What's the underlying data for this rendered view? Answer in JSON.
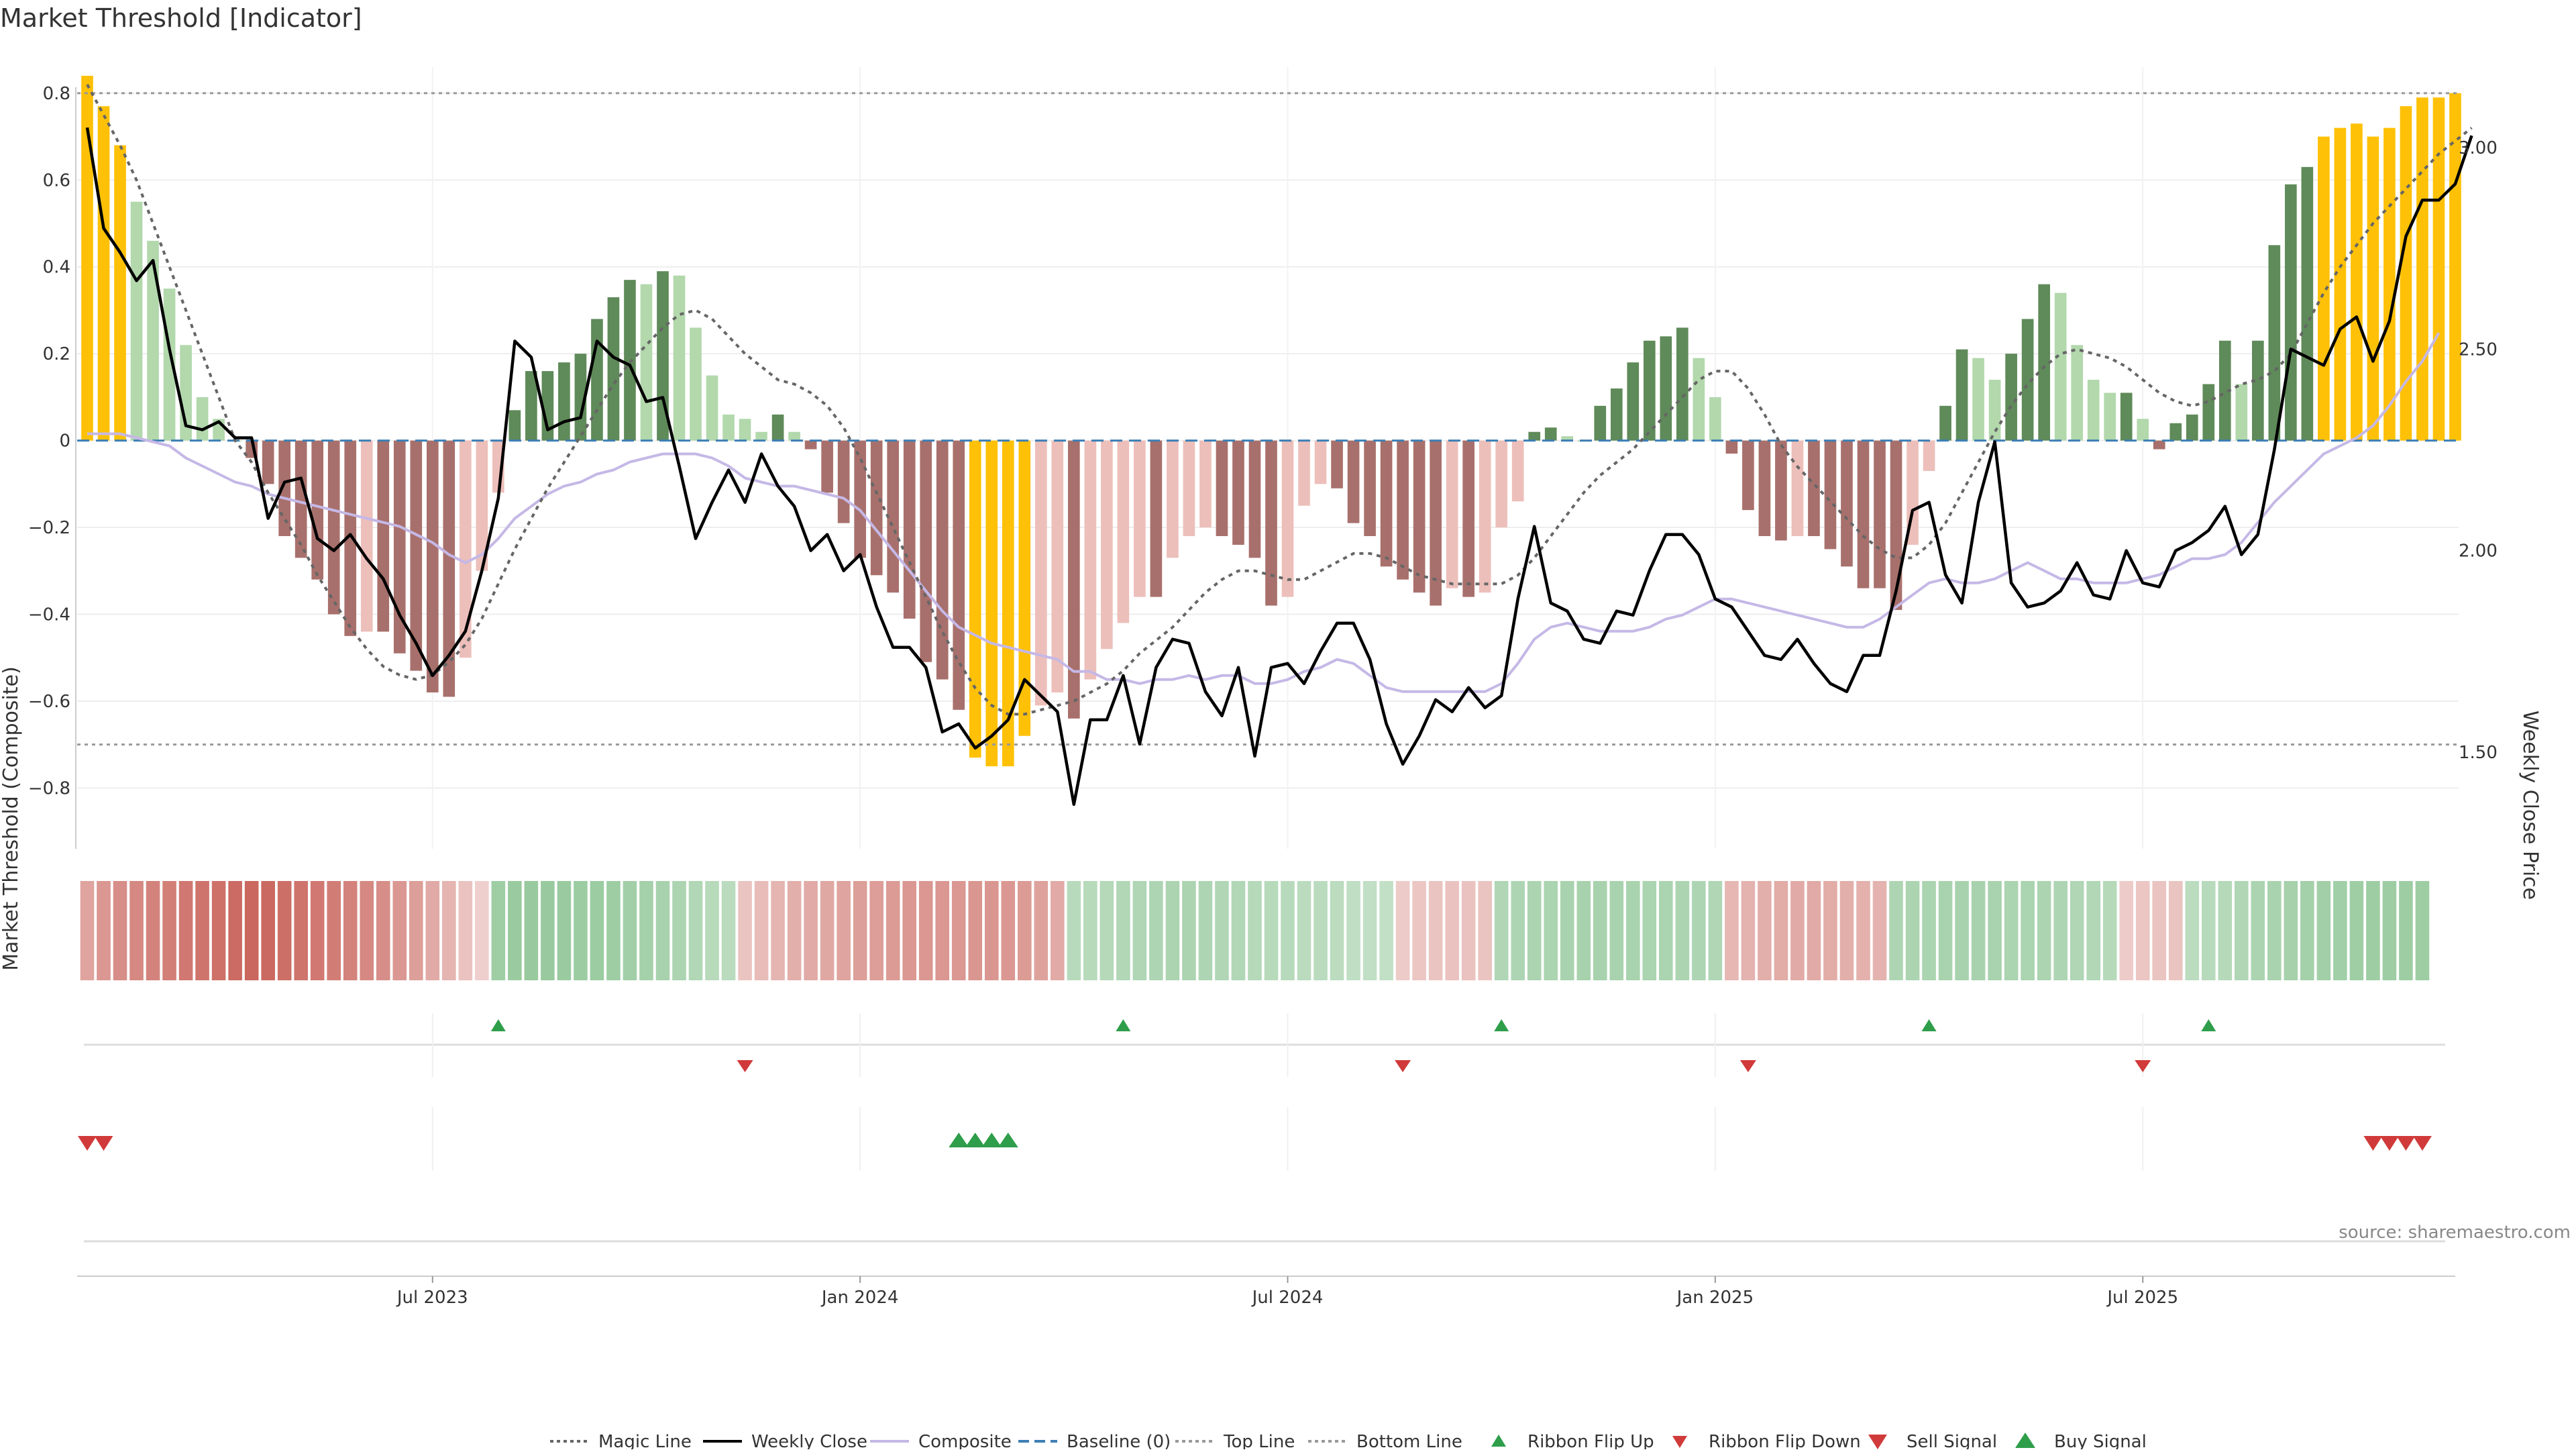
{
  "page": {
    "title": "Market Threshold [Indicator]",
    "source": "source: sharemaestro.com"
  },
  "colors": {
    "gold": "#FFC107",
    "green_strong": "#5F8A59",
    "green_light": "#B2D8AC",
    "red_strong": "#A8706C",
    "red_light": "#EDBFBA",
    "black": "#000000",
    "composite": "#C5B8E6",
    "grey": "#666666",
    "baseline": "#3D7FB5",
    "up": "#2E9E4A",
    "down": "#D13A3A"
  },
  "chart_data": {
    "type": "bar",
    "title": "Market Threshold [Indicator]",
    "ylabel": "Market Threshold (Composite)",
    "y2label": "Weekly Close Price",
    "ylim": [
      -0.94,
      0.86
    ],
    "y2lim": [
      1.26,
      3.2
    ],
    "yticks": [
      "0.8",
      "0.6",
      "0.4",
      "0.2",
      "0",
      "−0.2",
      "−0.4",
      "−0.6",
      "−0.8"
    ],
    "yticks_values": [
      0.8,
      0.6,
      0.4,
      0.2,
      0,
      -0.2,
      -0.4,
      -0.6,
      -0.8
    ],
    "y2ticks": [
      "3.00",
      "2.50",
      "2.00",
      "1.50"
    ],
    "y2ticks_values": [
      3.0,
      2.5,
      2.0,
      1.5
    ],
    "xticks": [
      {
        "label": "Jul 2023",
        "week": 21
      },
      {
        "label": "Jan 2024",
        "week": 47
      },
      {
        "label": "Jul 2024",
        "week": 73
      },
      {
        "label": "Jan 2025",
        "week": 99
      },
      {
        "label": "Jul 2025",
        "week": 125
      }
    ],
    "top_line": 0.8,
    "bottom_line": -0.7,
    "baseline": 0,
    "composite_bars": [
      0.84,
      0.77,
      0.68,
      0.55,
      0.46,
      0.35,
      0.22,
      0.1,
      0.05,
      0.0,
      -0.04,
      -0.1,
      -0.22,
      -0.27,
      -0.32,
      -0.4,
      -0.45,
      -0.44,
      -0.44,
      -0.49,
      -0.53,
      -0.58,
      -0.59,
      -0.5,
      -0.3,
      -0.12,
      0.07,
      0.16,
      0.16,
      0.18,
      0.2,
      0.28,
      0.33,
      0.37,
      0.36,
      0.39,
      0.38,
      0.26,
      0.15,
      0.06,
      0.05,
      0.02,
      0.06,
      0.02,
      -0.02,
      -0.12,
      -0.19,
      -0.27,
      -0.31,
      -0.35,
      -0.41,
      -0.51,
      -0.55,
      -0.62,
      -0.73,
      -0.75,
      -0.75,
      -0.68,
      -0.61,
      -0.58,
      -0.64,
      -0.55,
      -0.48,
      -0.42,
      -0.36,
      -0.36,
      -0.27,
      -0.22,
      -0.2,
      -0.22,
      -0.24,
      -0.27,
      -0.38,
      -0.36,
      -0.15,
      -0.1,
      -0.11,
      -0.19,
      -0.22,
      -0.29,
      -0.32,
      -0.35,
      -0.38,
      -0.34,
      -0.36,
      -0.35,
      -0.2,
      -0.14,
      0.02,
      0.03,
      0.01,
      0.0,
      0.08,
      0.12,
      0.18,
      0.23,
      0.24,
      0.26,
      0.19,
      0.1,
      -0.03,
      -0.16,
      -0.22,
      -0.23,
      -0.22,
      -0.22,
      -0.25,
      -0.29,
      -0.34,
      -0.34,
      -0.39,
      -0.24,
      -0.07,
      0.08,
      0.21,
      0.19,
      0.14,
      0.2,
      0.28,
      0.36,
      0.34,
      0.22,
      0.14,
      0.11,
      0.11,
      0.05,
      -0.02,
      0.04,
      0.06,
      0.13,
      0.23,
      0.13,
      0.23,
      0.45,
      0.59,
      0.63,
      0.7,
      0.72,
      0.73,
      0.7,
      0.72,
      0.77,
      0.79,
      0.79,
      0.8
    ],
    "series": [
      {
        "name": "Weekly Close",
        "axis": "right",
        "values": [
          3.05,
          2.8,
          2.74,
          2.67,
          2.72,
          2.5,
          2.31,
          2.3,
          2.32,
          2.28,
          2.28,
          2.08,
          2.17,
          2.18,
          2.03,
          2.0,
          2.04,
          1.98,
          1.93,
          1.84,
          1.77,
          1.69,
          1.74,
          1.8,
          1.95,
          2.13,
          2.52,
          2.48,
          2.3,
          2.32,
          2.33,
          2.52,
          2.48,
          2.46,
          2.37,
          2.38,
          2.21,
          2.03,
          2.12,
          2.2,
          2.12,
          2.24,
          2.16,
          2.11,
          2.0,
          2.04,
          1.95,
          1.99,
          1.86,
          1.76,
          1.76,
          1.71,
          1.55,
          1.57,
          1.51,
          1.54,
          1.58,
          1.68,
          1.64,
          1.6,
          1.37,
          1.58,
          1.58,
          1.69,
          1.52,
          1.71,
          1.78,
          1.77,
          1.65,
          1.59,
          1.71,
          1.49,
          1.71,
          1.72,
          1.67,
          1.75,
          1.82,
          1.82,
          1.73,
          1.57,
          1.47,
          1.54,
          1.63,
          1.6,
          1.66,
          1.61,
          1.64,
          1.88,
          2.06,
          1.87,
          1.85,
          1.78,
          1.77,
          1.85,
          1.84,
          1.95,
          2.04,
          2.04,
          1.99,
          1.88,
          1.86,
          1.8,
          1.74,
          1.73,
          1.78,
          1.72,
          1.67,
          1.65,
          1.74,
          1.74,
          1.9,
          2.1,
          2.12,
          1.94,
          1.87,
          2.12,
          2.27,
          1.92,
          1.86,
          1.87,
          1.9,
          1.97,
          1.89,
          1.88,
          2.0,
          1.92,
          1.91,
          2.0,
          2.02,
          2.05,
          2.11,
          1.99,
          2.04,
          2.25,
          2.5,
          2.48,
          2.46,
          2.55,
          2.58,
          2.47,
          2.57,
          2.78,
          2.87,
          2.87,
          2.91,
          3.03
        ]
      },
      {
        "name": "Composite",
        "axis": "right",
        "values": [
          2.29,
          2.29,
          2.29,
          2.28,
          2.27,
          2.26,
          2.23,
          2.21,
          2.19,
          2.17,
          2.16,
          2.14,
          2.13,
          2.12,
          2.11,
          2.1,
          2.09,
          2.08,
          2.07,
          2.06,
          2.04,
          2.02,
          1.99,
          1.97,
          1.99,
          2.03,
          2.08,
          2.11,
          2.14,
          2.16,
          2.17,
          2.19,
          2.2,
          2.22,
          2.23,
          2.24,
          2.24,
          2.24,
          2.23,
          2.21,
          2.18,
          2.17,
          2.16,
          2.16,
          2.15,
          2.14,
          2.13,
          2.1,
          2.05,
          2.0,
          1.95,
          1.9,
          1.85,
          1.81,
          1.79,
          1.77,
          1.76,
          1.75,
          1.74,
          1.73,
          1.7,
          1.7,
          1.68,
          1.68,
          1.67,
          1.68,
          1.68,
          1.69,
          1.68,
          1.69,
          1.69,
          1.67,
          1.67,
          1.68,
          1.7,
          1.71,
          1.73,
          1.72,
          1.69,
          1.66,
          1.65,
          1.65,
          1.65,
          1.65,
          1.65,
          1.65,
          1.67,
          1.72,
          1.78,
          1.81,
          1.82,
          1.81,
          1.8,
          1.8,
          1.8,
          1.81,
          1.83,
          1.84,
          1.86,
          1.88,
          1.88,
          1.87,
          1.86,
          1.85,
          1.84,
          1.83,
          1.82,
          1.81,
          1.81,
          1.83,
          1.86,
          1.89,
          1.92,
          1.93,
          1.92,
          1.92,
          1.93,
          1.95,
          1.97,
          1.95,
          1.93,
          1.93,
          1.92,
          1.92,
          1.92,
          1.93,
          1.94,
          1.96,
          1.98,
          1.98,
          1.99,
          2.02,
          2.07,
          2.12,
          2.16,
          2.2,
          2.24,
          2.26,
          2.28,
          2.31,
          2.36,
          2.42,
          2.47,
          2.54
        ]
      },
      {
        "name": "Magic Line",
        "axis": "left",
        "values": [
          0.82,
          0.75,
          0.68,
          0.6,
          0.5,
          0.4,
          0.3,
          0.2,
          0.1,
          0.0,
          -0.05,
          -0.12,
          -0.18,
          -0.24,
          -0.31,
          -0.37,
          -0.43,
          -0.48,
          -0.52,
          -0.54,
          -0.55,
          -0.54,
          -0.51,
          -0.47,
          -0.41,
          -0.33,
          -0.25,
          -0.18,
          -0.11,
          -0.05,
          0.01,
          0.07,
          0.13,
          0.18,
          0.22,
          0.26,
          0.29,
          0.3,
          0.28,
          0.24,
          0.2,
          0.17,
          0.14,
          0.13,
          0.11,
          0.08,
          0.03,
          -0.04,
          -0.12,
          -0.2,
          -0.28,
          -0.36,
          -0.44,
          -0.51,
          -0.57,
          -0.61,
          -0.63,
          -0.63,
          -0.62,
          -0.61,
          -0.6,
          -0.58,
          -0.56,
          -0.53,
          -0.49,
          -0.46,
          -0.43,
          -0.39,
          -0.35,
          -0.32,
          -0.3,
          -0.3,
          -0.31,
          -0.32,
          -0.32,
          -0.3,
          -0.28,
          -0.26,
          -0.26,
          -0.27,
          -0.29,
          -0.31,
          -0.32,
          -0.33,
          -0.33,
          -0.33,
          -0.33,
          -0.31,
          -0.27,
          -0.22,
          -0.17,
          -0.12,
          -0.08,
          -0.05,
          -0.02,
          0.02,
          0.06,
          0.1,
          0.14,
          0.16,
          0.16,
          0.12,
          0.06,
          -0.01,
          -0.06,
          -0.1,
          -0.14,
          -0.18,
          -0.22,
          -0.25,
          -0.27,
          -0.27,
          -0.24,
          -0.19,
          -0.12,
          -0.05,
          0.02,
          0.08,
          0.13,
          0.17,
          0.2,
          0.21,
          0.2,
          0.19,
          0.17,
          0.14,
          0.11,
          0.09,
          0.08,
          0.09,
          0.11,
          0.13,
          0.14,
          0.16,
          0.2,
          0.27,
          0.34,
          0.4,
          0.45,
          0.5,
          0.54,
          0.58,
          0.62,
          0.66,
          0.69,
          0.72
        ]
      }
    ],
    "ribbon_values": [
      -0.45,
      -0.55,
      -0.62,
      -0.66,
      -0.7,
      -0.73,
      -0.78,
      -0.82,
      -0.85,
      -0.88,
      -0.92,
      -0.9,
      -0.86,
      -0.82,
      -0.78,
      -0.74,
      -0.7,
      -0.66,
      -0.62,
      -0.55,
      -0.48,
      -0.4,
      -0.32,
      -0.22,
      -0.12,
      0.55,
      0.6,
      0.62,
      0.62,
      0.6,
      0.58,
      0.58,
      0.56,
      0.52,
      0.5,
      0.46,
      0.42,
      0.36,
      0.32,
      0.28,
      -0.2,
      -0.26,
      -0.32,
      -0.36,
      -0.4,
      -0.42,
      -0.45,
      -0.48,
      -0.5,
      -0.52,
      -0.54,
      -0.54,
      -0.55,
      -0.55,
      -0.56,
      -0.56,
      -0.55,
      -0.52,
      -0.46,
      -0.4,
      0.3,
      0.32,
      0.34,
      0.36,
      0.38,
      0.4,
      0.42,
      0.42,
      0.4,
      0.38,
      0.36,
      0.34,
      0.32,
      0.3,
      0.28,
      0.28,
      0.26,
      0.24,
      0.22,
      0.2,
      -0.15,
      -0.18,
      -0.2,
      -0.22,
      -0.22,
      -0.2,
      0.38,
      0.4,
      0.42,
      0.44,
      0.45,
      0.46,
      0.46,
      0.45,
      0.45,
      0.44,
      0.44,
      0.42,
      0.4,
      0.38,
      -0.3,
      -0.33,
      -0.36,
      -0.38,
      -0.4,
      -0.4,
      -0.38,
      -0.36,
      -0.34,
      -0.33,
      0.4,
      0.42,
      0.44,
      0.45,
      0.46,
      0.46,
      0.45,
      0.44,
      0.43,
      0.42,
      0.4,
      0.38,
      0.36,
      0.34,
      -0.15,
      -0.18,
      -0.2,
      -0.2,
      0.26,
      0.3,
      0.34,
      0.38,
      0.42,
      0.45,
      0.48,
      0.5,
      0.52,
      0.54,
      0.55,
      0.56,
      0.56,
      0.56,
      0.56
    ],
    "ribbon_flip_up_weeks": [
      25,
      63,
      86,
      112,
      129
    ],
    "ribbon_flip_down_weeks": [
      40,
      80,
      101,
      125
    ],
    "sell_signal_weeks": [
      0,
      1,
      139,
      140,
      141,
      142
    ],
    "buy_signal_weeks": [
      53,
      54,
      55,
      56
    ],
    "legend": [
      {
        "label": "Magic Line",
        "kind": "line",
        "style": "dotted",
        "color": "#666666"
      },
      {
        "label": "Weekly Close",
        "kind": "line",
        "style": "solid",
        "color": "#000000"
      },
      {
        "label": "Composite",
        "kind": "line",
        "style": "solid",
        "color": "#C5B8E6"
      },
      {
        "label": "Baseline (0)",
        "kind": "line",
        "style": "dashed",
        "color": "#3D7FB5"
      },
      {
        "label": "Top Line",
        "kind": "line",
        "style": "dotted",
        "color": "#999999"
      },
      {
        "label": "Bottom Line",
        "kind": "line",
        "style": "dotted",
        "color": "#999999"
      },
      {
        "label": "Ribbon Flip Up",
        "kind": "tri-up-small",
        "color": "#2E9E4A"
      },
      {
        "label": "Ribbon Flip Down",
        "kind": "tri-down-small",
        "color": "#D13A3A"
      },
      {
        "label": "Sell Signal",
        "kind": "tri-down",
        "color": "#D13A3A"
      },
      {
        "label": "Buy Signal",
        "kind": "tri-up",
        "color": "#2E9E4A"
      }
    ]
  }
}
